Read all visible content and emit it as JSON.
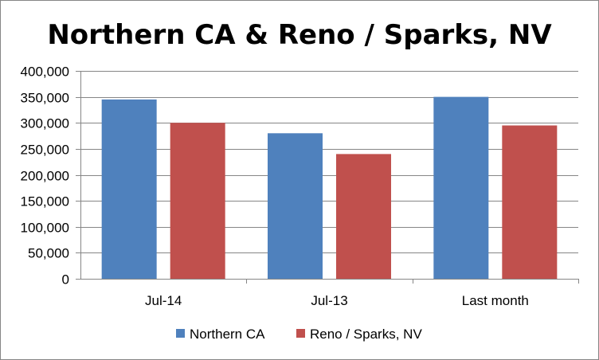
{
  "chart_data": {
    "type": "bar",
    "title": "Northern CA & Reno / Sparks, NV",
    "xlabel": "",
    "ylabel": "",
    "categories": [
      "Jul-14",
      "Jul-13",
      "Last month"
    ],
    "series": [
      {
        "name": "Northern CA",
        "color": "#4F81BD",
        "values": [
          345000,
          280000,
          350000
        ]
      },
      {
        "name": "Reno / Sparks, NV",
        "color": "#C0504D",
        "values": [
          300000,
          240000,
          295000
        ]
      }
    ],
    "ylim": [
      0,
      400000
    ],
    "yticks": [
      0,
      50000,
      100000,
      150000,
      200000,
      250000,
      300000,
      350000,
      400000
    ],
    "ytick_labels": [
      "0",
      "50,000",
      "100,000",
      "150,000",
      "200,000",
      "250,000",
      "300,000",
      "350,000",
      "400,000"
    ],
    "grid": true,
    "gridline_color": "#868686",
    "legend_position": "bottom"
  }
}
